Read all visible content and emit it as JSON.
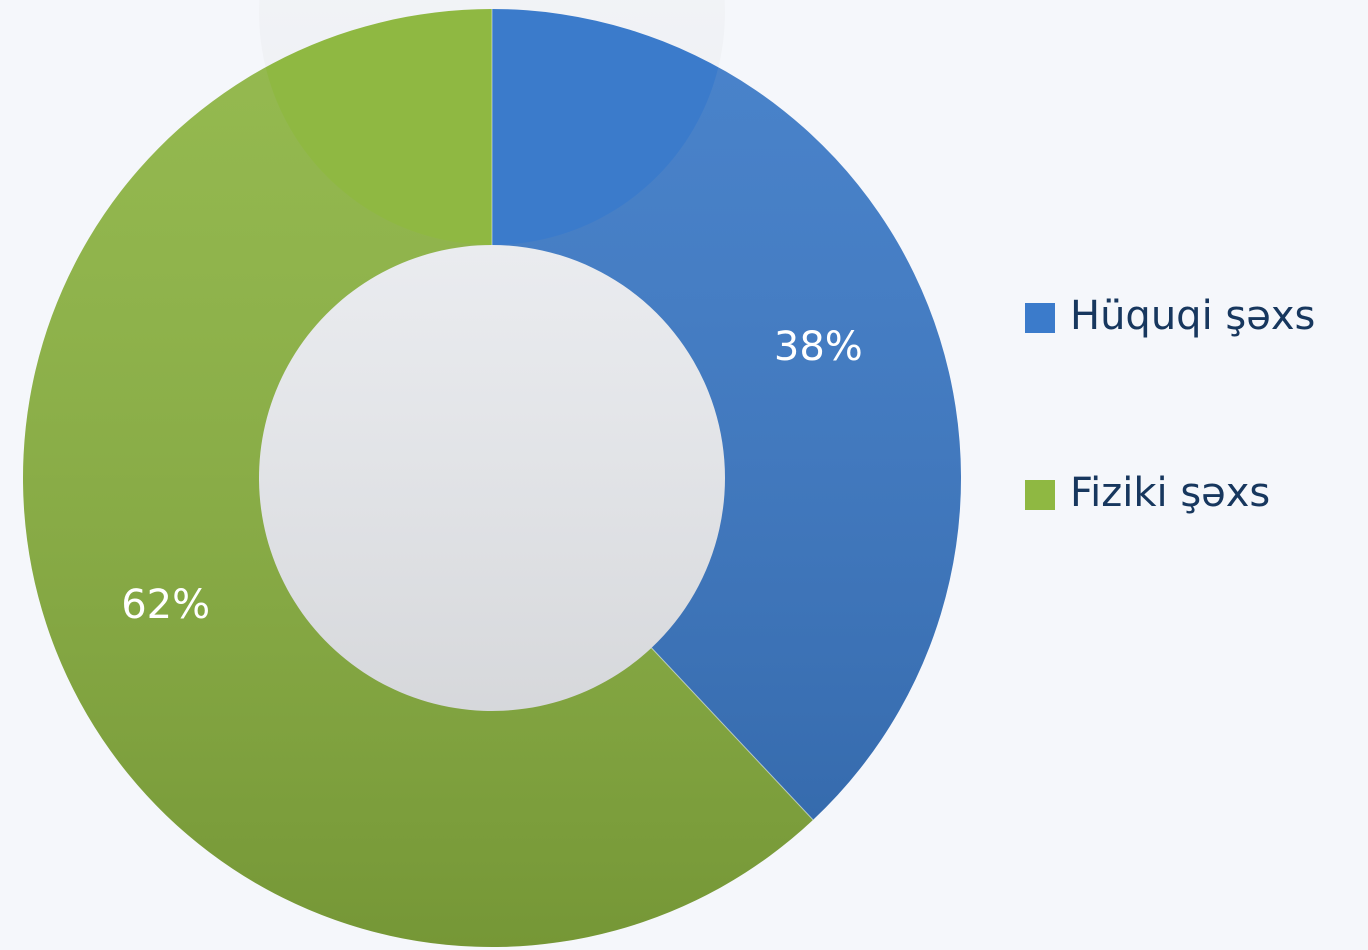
{
  "chart_data": {
    "type": "donut",
    "categories": [
      "Hüquqi şəxs",
      "Fiziki şəxs"
    ],
    "values": [
      38,
      62
    ],
    "value_labels": [
      "38%",
      "62%"
    ],
    "colors": [
      "#3b7bcb",
      "#8fb842"
    ],
    "legend": "right"
  }
}
